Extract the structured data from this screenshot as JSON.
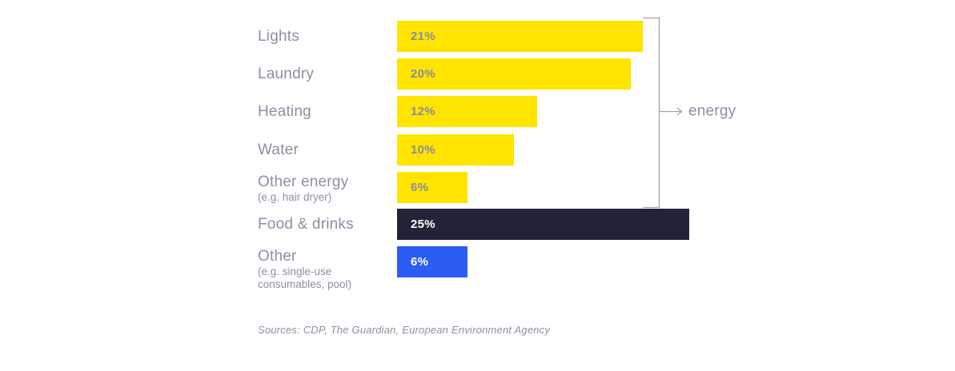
{
  "palette": {
    "background": "#FFFFFF",
    "yellow": "#FFE400",
    "dark_navy": "#212438",
    "blue": "#2B5CF4",
    "label_text": "#8C8FA3",
    "pct_on_yellow": "#898CA1",
    "pct_on_dark": "#FFFFFF",
    "bracket": "#9FA2B2"
  },
  "chart_data": {
    "type": "bar",
    "orientation": "horizontal",
    "unit": "%",
    "title": "",
    "xlabel": "",
    "ylabel": "",
    "xlim": [
      0,
      25
    ],
    "grid": false,
    "legend": false,
    "categories": [
      "Lights",
      "Laundry",
      "Heating",
      "Water",
      "Other energy",
      "Food & drinks",
      "Other"
    ],
    "category_sublabels": [
      "",
      "",
      "",
      "",
      "(e.g. hair dryer)",
      "",
      "(e.g. single-use consumables, pool)"
    ],
    "values": [
      21,
      20,
      12,
      10,
      6,
      25,
      6
    ],
    "data_labels": [
      "21%",
      "20%",
      "12%",
      "10%",
      "6%",
      "25%",
      "6%"
    ],
    "bar_colors": [
      "#FFE400",
      "#FFE400",
      "#FFE400",
      "#FFE400",
      "#FFE400",
      "#212438",
      "#2B5CF4"
    ],
    "group_annotation": {
      "label": "energy",
      "grouped_categories": [
        "Lights",
        "Laundry",
        "Heating",
        "Water",
        "Other energy"
      ],
      "style": "right-side bracket with arrow"
    },
    "source": "Sources: CDP, The Guardian, European Environment Agency"
  },
  "bars": [
    {
      "label": "Lights",
      "sublabel": "",
      "value": 21,
      "value_label": "21%",
      "color": "yellow",
      "text": "dark"
    },
    {
      "label": "Laundry",
      "sublabel": "",
      "value": 20,
      "value_label": "20%",
      "color": "yellow",
      "text": "dark"
    },
    {
      "label": "Heating",
      "sublabel": "",
      "value": 12,
      "value_label": "12%",
      "color": "yellow",
      "text": "dark"
    },
    {
      "label": "Water",
      "sublabel": "",
      "value": 10,
      "value_label": "10%",
      "color": "yellow",
      "text": "dark"
    },
    {
      "label": "Other energy",
      "sublabel": "(e.g. hair dryer)",
      "value": 6,
      "value_label": "6%",
      "color": "yellow",
      "text": "dark"
    },
    {
      "label": "Food & drinks",
      "sublabel": "",
      "value": 25,
      "value_label": "25%",
      "color": "dark_navy",
      "text": "light"
    },
    {
      "label": "Other",
      "sublabel": "(e.g. single-use consumables, pool)",
      "value": 6,
      "value_label": "6%",
      "color": "blue",
      "text": "light"
    }
  ],
  "group_annotation": {
    "label": "energy"
  },
  "source_note": {
    "text": "Sources: CDP, The Guardian, European Environment Agency"
  }
}
